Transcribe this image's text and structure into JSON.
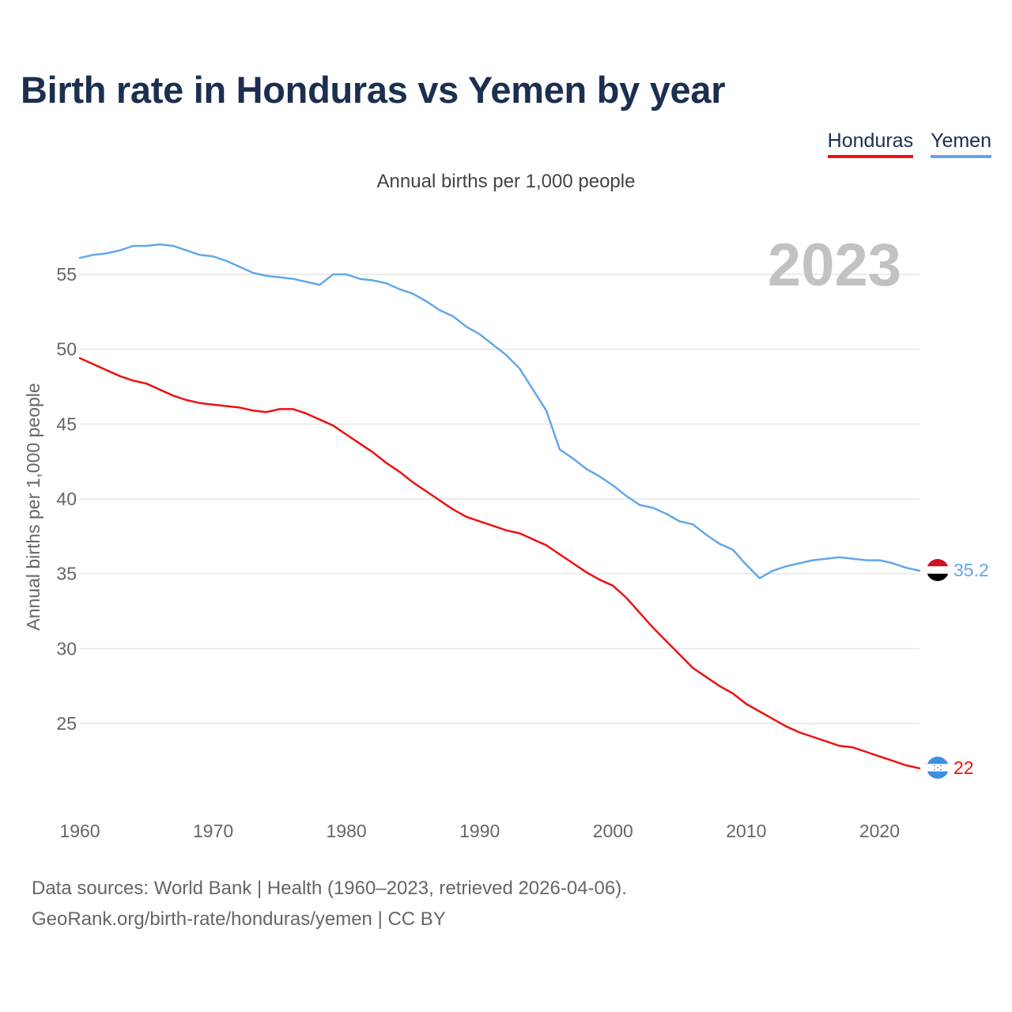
{
  "title": "Birth rate in Honduras vs Yemen by year",
  "legend": [
    {
      "name": "Honduras",
      "color": "#ee1111"
    },
    {
      "name": "Yemen",
      "color": "#62a8e8"
    }
  ],
  "subtitle": "Annual births per 1,000 people",
  "footer": {
    "line1": "Data sources: World Bank | Health (1960–2023, retrieved 2026-04-06).",
    "line2": "GeoRank.org/birth-rate/honduras/yemen | CC BY"
  },
  "chart_data": {
    "type": "line",
    "title": "Birth rate in Honduras vs Yemen by year",
    "xlabel": "",
    "ylabel": "Annual births per 1,000 people",
    "watermark_year": "2023",
    "xlim": [
      1960,
      2023
    ],
    "ylim": [
      20,
      58
    ],
    "xticks": [
      1960,
      1970,
      1980,
      1990,
      2000,
      2010,
      2020
    ],
    "yticks": [
      25,
      30,
      35,
      40,
      45,
      50,
      55
    ],
    "grid": true,
    "series": [
      {
        "name": "Honduras",
        "color": "#ee1111",
        "end_label": "22",
        "x": [
          1960,
          1961,
          1962,
          1963,
          1964,
          1965,
          1966,
          1967,
          1968,
          1969,
          1970,
          1971,
          1972,
          1973,
          1974,
          1975,
          1976,
          1977,
          1978,
          1979,
          1980,
          1981,
          1982,
          1983,
          1984,
          1985,
          1986,
          1987,
          1988,
          1989,
          1990,
          1991,
          1992,
          1993,
          1994,
          1995,
          1996,
          1997,
          1998,
          1999,
          2000,
          2001,
          2002,
          2003,
          2004,
          2005,
          2006,
          2007,
          2008,
          2009,
          2010,
          2011,
          2012,
          2013,
          2014,
          2015,
          2016,
          2017,
          2018,
          2019,
          2020,
          2021,
          2022,
          2023
        ],
        "values": [
          49.4,
          49.0,
          48.6,
          48.2,
          47.9,
          47.7,
          47.3,
          46.9,
          46.6,
          46.4,
          46.3,
          46.2,
          46.1,
          45.9,
          45.8,
          46.0,
          46.0,
          45.7,
          45.3,
          44.9,
          44.3,
          43.7,
          43.1,
          42.4,
          41.8,
          41.1,
          40.5,
          39.9,
          39.3,
          38.8,
          38.5,
          38.2,
          37.9,
          37.7,
          37.3,
          36.9,
          36.3,
          35.7,
          35.1,
          34.6,
          34.2,
          33.4,
          32.4,
          31.4,
          30.5,
          29.6,
          28.7,
          28.1,
          27.5,
          27.0,
          26.3,
          25.8,
          25.3,
          24.8,
          24.4,
          24.1,
          23.8,
          23.5,
          23.4,
          23.1,
          22.8,
          22.5,
          22.2,
          22.0
        ]
      },
      {
        "name": "Yemen",
        "color": "#62a8e8",
        "end_label": "35.2",
        "x": [
          1960,
          1961,
          1962,
          1963,
          1964,
          1965,
          1966,
          1967,
          1968,
          1969,
          1970,
          1971,
          1972,
          1973,
          1974,
          1975,
          1976,
          1977,
          1978,
          1979,
          1980,
          1981,
          1982,
          1983,
          1984,
          1985,
          1986,
          1987,
          1988,
          1989,
          1990,
          1991,
          1992,
          1993,
          1994,
          1995,
          1996,
          1997,
          1998,
          1999,
          2000,
          2001,
          2002,
          2003,
          2004,
          2005,
          2006,
          2007,
          2008,
          2009,
          2010,
          2011,
          2012,
          2013,
          2014,
          2015,
          2016,
          2017,
          2018,
          2019,
          2020,
          2021,
          2022,
          2023
        ],
        "values": [
          56.1,
          56.3,
          56.4,
          56.6,
          56.9,
          56.9,
          57.0,
          56.9,
          56.6,
          56.3,
          56.2,
          55.9,
          55.5,
          55.1,
          54.9,
          54.8,
          54.7,
          54.5,
          54.3,
          55.0,
          55.0,
          54.7,
          54.6,
          54.4,
          54.0,
          53.7,
          53.2,
          52.6,
          52.2,
          51.5,
          51.0,
          50.3,
          49.6,
          48.7,
          47.3,
          45.9,
          43.3,
          42.7,
          42.0,
          41.5,
          40.9,
          40.2,
          39.6,
          39.4,
          39.0,
          38.5,
          38.3,
          37.6,
          37.0,
          36.6,
          35.6,
          34.7,
          35.2,
          35.5,
          35.7,
          35.9,
          36.0,
          36.1,
          36.0,
          35.9,
          35.9,
          35.7,
          35.4,
          35.2
        ]
      }
    ]
  }
}
